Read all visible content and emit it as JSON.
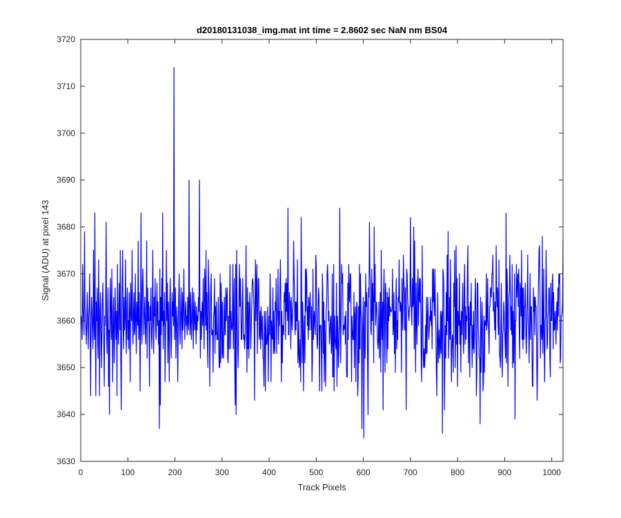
{
  "chart_data": {
    "type": "line",
    "title": "d20180131038_img.mat int time = 2.8602 sec  NaN nm BS04",
    "xlabel": "Track Pixels",
    "ylabel": "Signal (ADU) at pixel 143",
    "xlim": [
      0,
      1024
    ],
    "ylim": [
      3630,
      3720
    ],
    "xticks": [
      0,
      100,
      200,
      300,
      400,
      500,
      600,
      700,
      800,
      900,
      1000
    ],
    "yticks": [
      3630,
      3640,
      3650,
      3660,
      3670,
      3680,
      3690,
      3700,
      3710,
      3720
    ],
    "grid": false,
    "legend": "none",
    "line_color": "#0000ff",
    "series": [
      {
        "x_start": 1,
        "x_step": 1,
        "values": [
          3661,
          3659,
          3656,
          3672,
          3663,
          3660,
          3657,
          3679,
          3664,
          3660,
          3658,
          3655,
          3662,
          3666,
          3659,
          3654,
          3661,
          3663,
          3670,
          3657,
          3644,
          3659,
          3665,
          3662,
          3657,
          3654,
          3675,
          3660,
          3656,
          3683,
          3658,
          3644,
          3664,
          3660,
          3667,
          3655,
          3652,
          3673,
          3661,
          3644,
          3662,
          3666,
          3659,
          3650,
          3657,
          3664,
          3668,
          3660,
          3655,
          3646,
          3661,
          3659,
          3665,
          3681,
          3657,
          3653,
          3662,
          3667,
          3646,
          3658,
          3640,
          3664,
          3669,
          3660,
          3656,
          3671,
          3657,
          3647,
          3662,
          3665,
          3651,
          3657,
          3667,
          3660,
          3656,
          3662,
          3644,
          3672,
          3659,
          3655,
          3663,
          3668,
          3658,
          3675,
          3652,
          3641,
          3661,
          3669,
          3675,
          3658,
          3654,
          3665,
          3658,
          3661,
          3673,
          3657,
          3653,
          3664,
          3667,
          3656,
          3660,
          3654,
          3666,
          3661,
          3647,
          3668,
          3663,
          3660,
          3675,
          3659,
          3655,
          3662,
          3666,
          3657,
          3658,
          3670,
          3660,
          3653,
          3664,
          3661,
          3659,
          3677,
          3656,
          3666,
          3660,
          3645,
          3662,
          3683,
          3658,
          3655,
          3668,
          3671,
          3664,
          3657,
          3661,
          3665,
          3659,
          3655,
          3661,
          3677,
          3652,
          3667,
          3660,
          3664,
          3658,
          3646,
          3663,
          3660,
          3667,
          3657,
          3654,
          3662,
          3675,
          3659,
          3653,
          3665,
          3661,
          3669,
          3658,
          3656,
          3663,
          3668,
          3659,
          3664,
          3655,
          3660,
          3637,
          3671,
          3642,
          3665,
          3657,
          3669,
          3660,
          3683,
          3654,
          3662,
          3659,
          3666,
          3647,
          3656,
          3662,
          3675,
          3660,
          3668,
          3651,
          3664,
          3658,
          3647,
          3663,
          3669,
          3660,
          3652,
          3657,
          3666,
          3661,
          3664,
          3659,
          3714,
          3656,
          3661,
          3667,
          3652,
          3658,
          3663,
          3660,
          3647,
          3657,
          3665,
          3670,
          3659,
          3655,
          3661,
          3667,
          3660,
          3654,
          3666,
          3658,
          3663,
          3671,
          3660,
          3656,
          3662,
          3664,
          3659,
          3661,
          3657,
          3665,
          3660,
          3658,
          3690,
          3663,
          3657,
          3666,
          3660,
          3656,
          3662,
          3667,
          3659,
          3654,
          3666,
          3661,
          3658,
          3664,
          3660,
          3655,
          3663,
          3658,
          3661,
          3660,
          3665,
          3662
        ],
        "note_values": "first 250 of 1024 points shown; remainder generated by script"
      }
    ]
  }
}
